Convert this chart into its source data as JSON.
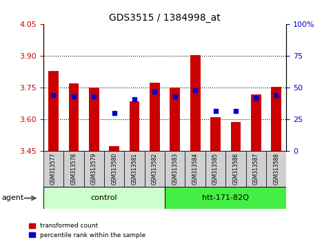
{
  "title": "GDS3515 / 1384998_at",
  "samples": [
    "GSM313577",
    "GSM313578",
    "GSM313579",
    "GSM313580",
    "GSM313581",
    "GSM313582",
    "GSM313583",
    "GSM313584",
    "GSM313585",
    "GSM313586",
    "GSM313587",
    "GSM313588"
  ],
  "transformed_count": [
    3.83,
    3.77,
    3.75,
    3.475,
    3.685,
    3.775,
    3.75,
    3.905,
    3.61,
    3.59,
    3.72,
    3.755
  ],
  "percentile_rank": [
    44,
    43,
    43,
    30,
    41,
    47,
    43,
    48,
    32,
    32,
    42,
    44
  ],
  "y_min": 3.45,
  "y_max": 4.05,
  "y_ticks": [
    3.45,
    3.6,
    3.75,
    3.9,
    4.05
  ],
  "y_right_ticks": [
    0,
    25,
    50,
    75,
    100
  ],
  "bar_color": "#cc0000",
  "dot_color": "#0000cc",
  "grid_color": "#000000",
  "agent_groups": [
    {
      "label": "control",
      "start": 0,
      "end": 5,
      "color": "#ccffcc"
    },
    {
      "label": "htt-171-82Q",
      "start": 6,
      "end": 11,
      "color": "#44ee44"
    }
  ],
  "agent_label": "agent",
  "legend_items": [
    {
      "label": "transformed count",
      "color": "#cc0000"
    },
    {
      "label": "percentile rank within the sample",
      "color": "#0000cc"
    }
  ],
  "bar_width": 0.5,
  "base_value": 3.45,
  "left_tick_color": "#cc0000",
  "right_axis_color": "#0000cc"
}
